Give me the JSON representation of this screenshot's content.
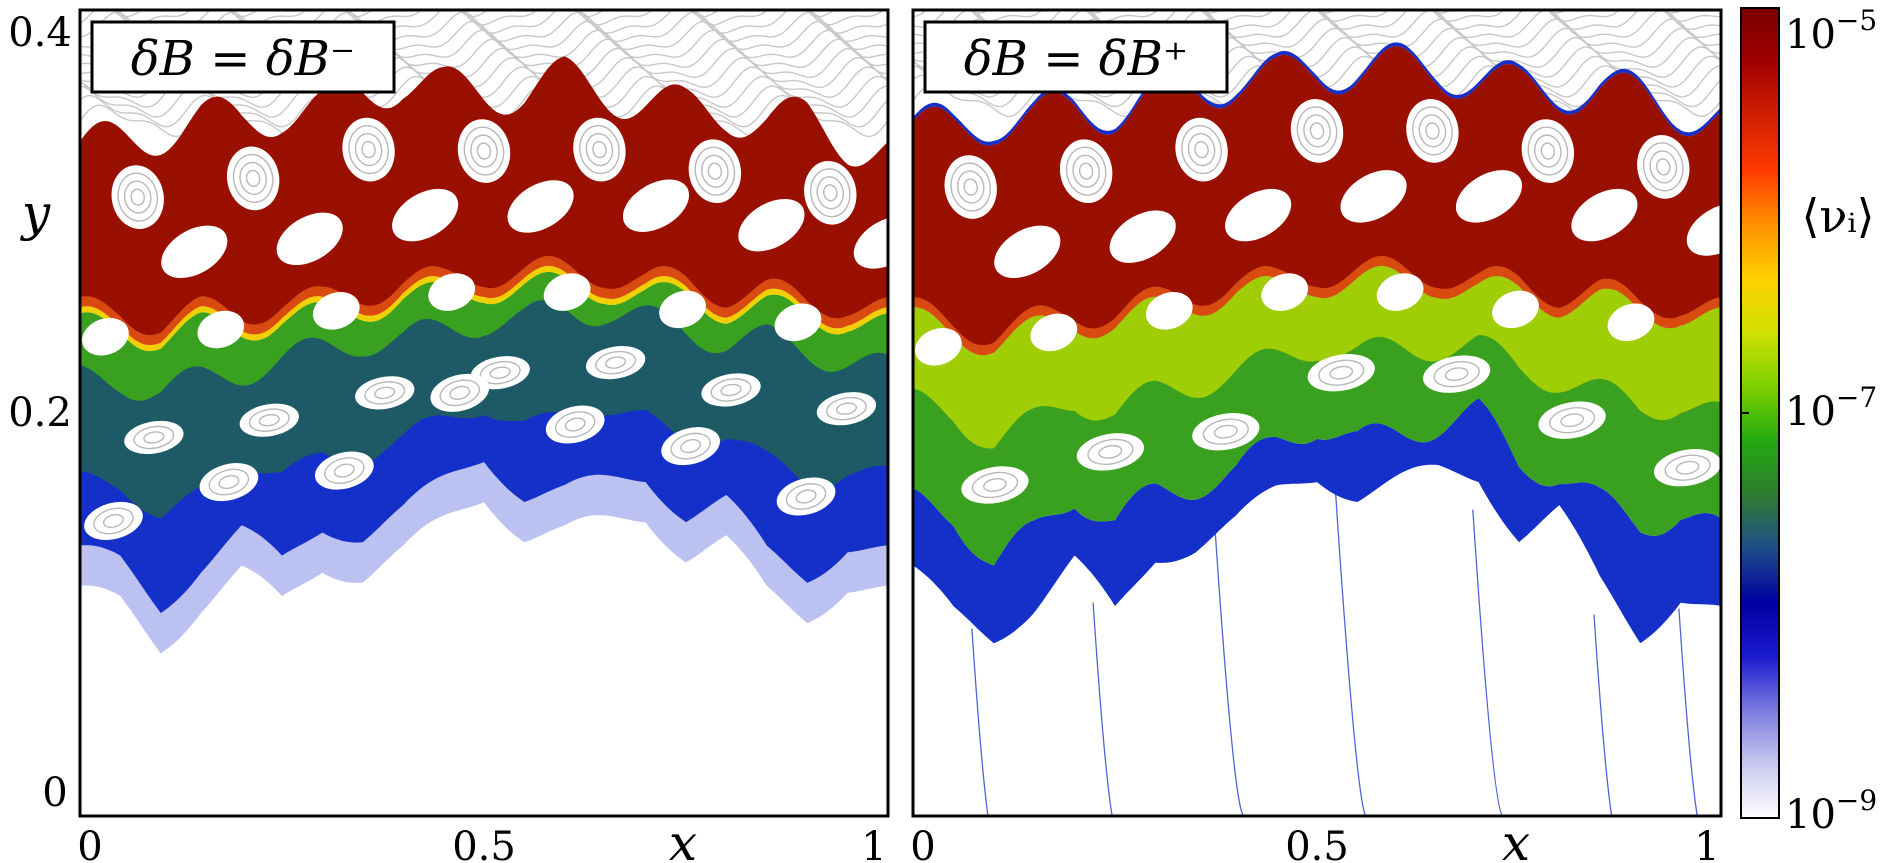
{
  "chart_data": [
    {
      "type": "heatmap",
      "title": "δB = δB⁻",
      "xlabel": "x",
      "ylabel": "y",
      "xlim": [
        0,
        1
      ],
      "ylim": [
        0,
        0.4
      ],
      "x_ticks": [
        "0",
        "0.5",
        "1"
      ],
      "y_ticks": [
        "0",
        "0.2",
        "0.4"
      ],
      "band_boundaries": {
        "x": [
          0,
          0.05,
          0.1,
          0.15,
          0.2,
          0.25,
          0.3,
          0.35,
          0.4,
          0.45,
          0.5,
          0.55,
          0.6,
          0.65,
          0.7,
          0.75,
          0.8,
          0.85,
          0.9,
          0.95,
          1.0
        ],
        "chaos_top": [
          0.33,
          0.335,
          0.34,
          0.345,
          0.345,
          0.35,
          0.35,
          0.36,
          0.365,
          0.36,
          0.36,
          0.36,
          0.365,
          0.36,
          0.355,
          0.35,
          0.35,
          0.345,
          0.345,
          0.335,
          0.33
        ],
        "red_bottom": [
          0.245,
          0.245,
          0.24,
          0.245,
          0.245,
          0.25,
          0.25,
          0.255,
          0.26,
          0.26,
          0.265,
          0.265,
          0.265,
          0.265,
          0.26,
          0.26,
          0.255,
          0.255,
          0.25,
          0.25,
          0.245
        ],
        "green_bottom": [
          0.22,
          0.22,
          0.215,
          0.22,
          0.225,
          0.23,
          0.235,
          0.24,
          0.24,
          0.245,
          0.25,
          0.25,
          0.255,
          0.255,
          0.25,
          0.245,
          0.24,
          0.24,
          0.235,
          0.23,
          0.225
        ],
        "blue_bottom": [
          0.13,
          0.125,
          0.105,
          0.125,
          0.14,
          0.125,
          0.145,
          0.14,
          0.15,
          0.165,
          0.18,
          0.16,
          0.16,
          0.165,
          0.17,
          0.15,
          0.155,
          0.13,
          0.12,
          0.135,
          0.13
        ],
        "pale_bottom": [
          0.11,
          0.105,
          0.085,
          0.105,
          0.12,
          0.105,
          0.125,
          0.12,
          0.13,
          0.145,
          0.16,
          0.14,
          0.14,
          0.145,
          0.15,
          0.13,
          0.135,
          0.11,
          0.1,
          0.115,
          0.11
        ]
      }
    },
    {
      "type": "heatmap",
      "title": "δB = δB⁺",
      "xlabel": "x",
      "ylabel": "",
      "xlim": [
        0,
        1
      ],
      "ylim": [
        0,
        0.4
      ],
      "x_ticks": [
        "0",
        "0.5",
        "1"
      ],
      "band_boundaries": {
        "x": [
          0,
          0.05,
          0.1,
          0.15,
          0.2,
          0.25,
          0.3,
          0.35,
          0.4,
          0.45,
          0.5,
          0.55,
          0.6,
          0.65,
          0.7,
          0.75,
          0.8,
          0.85,
          0.9,
          0.95,
          1.0
        ],
        "chaos_top": [
          0.34,
          0.34,
          0.345,
          0.345,
          0.35,
          0.35,
          0.355,
          0.36,
          0.365,
          0.365,
          0.37,
          0.37,
          0.37,
          0.37,
          0.365,
          0.36,
          0.36,
          0.36,
          0.355,
          0.35,
          0.345
        ],
        "red_bottom": [
          0.245,
          0.24,
          0.235,
          0.24,
          0.245,
          0.245,
          0.25,
          0.255,
          0.26,
          0.26,
          0.265,
          0.265,
          0.265,
          0.265,
          0.26,
          0.26,
          0.255,
          0.255,
          0.25,
          0.25,
          0.245
        ],
        "green_bottom": [
          0.155,
          0.15,
          0.125,
          0.14,
          0.16,
          0.145,
          0.16,
          0.165,
          0.17,
          0.185,
          0.195,
          0.185,
          0.19,
          0.195,
          0.2,
          0.175,
          0.17,
          0.155,
          0.145,
          0.15,
          0.14
        ],
        "blue_bottom": [
          0.12,
          0.1,
          0.09,
          0.105,
          0.125,
          0.1,
          0.13,
          0.135,
          0.145,
          0.16,
          0.17,
          0.16,
          0.165,
          0.17,
          0.17,
          0.14,
          0.15,
          0.115,
          0.09,
          0.11,
          0.1
        ]
      }
    }
  ],
  "colorbar": {
    "label": "⟨νᵢ⟩",
    "scale": "log",
    "range": [
      1e-09,
      1e-05
    ],
    "ticks": [
      {
        "base": "10",
        "exp": "−5",
        "value": 1e-05
      },
      {
        "base": "10",
        "exp": "−7",
        "value": 1e-07
      },
      {
        "base": "10",
        "exp": "−9",
        "value": 1e-09
      }
    ],
    "colors": [
      "#ffffff",
      "#c8c8f0",
      "#7a7ae0",
      "#1a1ad0",
      "#0000a0",
      "#1e4e8a",
      "#2e7d2e",
      "#22aa10",
      "#7fd000",
      "#d0e000",
      "#ffd000",
      "#ff9000",
      "#ff3a00",
      "#d02000",
      "#a00000",
      "#7a0000"
    ]
  },
  "colors": {
    "red": "#9a1000",
    "orange": "#d84a10",
    "yellow": "#f2d000",
    "green": "#3aa020",
    "teal": "#1e5a66",
    "blue": "#1530c8",
    "pale_blue": "#aab2ee",
    "island": "#ffffff",
    "island_line": "#b8b8b8",
    "kam_line": "#c8c8c8"
  }
}
